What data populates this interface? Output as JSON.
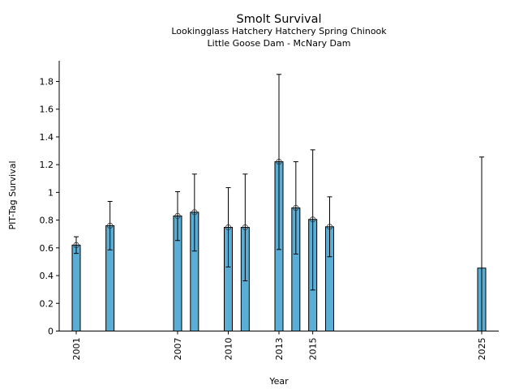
{
  "chart_data": {
    "type": "bar",
    "title": "Smolt Survival",
    "subtitle_lines": [
      "Lookingglass Hatchery Hatchery Spring Chinook",
      "Little Goose Dam - McNary Dam"
    ],
    "xlabel": "Year",
    "ylabel": "PIT-Tag Survival",
    "ylim": [
      0,
      1.95
    ],
    "xlim": [
      2000.1,
      2026.0
    ],
    "yticks": [
      0,
      0.2,
      0.4,
      0.6,
      0.8,
      1,
      1.2,
      1.4,
      1.6,
      1.8
    ],
    "ytick_labels": [
      "0",
      "0.2",
      "0.4",
      "0.6",
      "0.8",
      "1",
      "1.2",
      "1.4",
      "1.6",
      "1.8"
    ],
    "xticks": [
      2001,
      2007,
      2010,
      2013,
      2015,
      2025
    ],
    "xtick_labels": [
      "2001",
      "2007",
      "2010",
      "2013",
      "2015",
      "2025"
    ],
    "grid": false,
    "bar_color": "#5aaed6",
    "points": [
      {
        "year": 2001,
        "value": 0.62,
        "err_low": 0.56,
        "err_high": 0.68,
        "marker": true
      },
      {
        "year": 2003,
        "value": 0.76,
        "err_low": 0.585,
        "err_high": 0.935,
        "marker": true
      },
      {
        "year": 2007,
        "value": 0.83,
        "err_low": 0.653,
        "err_high": 1.005,
        "marker": true
      },
      {
        "year": 2008,
        "value": 0.857,
        "err_low": 0.577,
        "err_high": 1.132,
        "marker": true
      },
      {
        "year": 2010,
        "value": 0.748,
        "err_low": 0.462,
        "err_high": 1.034,
        "marker": true
      },
      {
        "year": 2011,
        "value": 0.748,
        "err_low": 0.362,
        "err_high": 1.132,
        "marker": true
      },
      {
        "year": 2013,
        "value": 1.221,
        "err_low": 0.588,
        "err_high": 1.851,
        "marker": true
      },
      {
        "year": 2014,
        "value": 0.888,
        "err_low": 0.555,
        "err_high": 1.221,
        "marker": true
      },
      {
        "year": 2015,
        "value": 0.805,
        "err_low": 0.296,
        "err_high": 1.307,
        "marker": true
      },
      {
        "year": 2016,
        "value": 0.752,
        "err_low": 0.536,
        "err_high": 0.968,
        "marker": true
      },
      {
        "year": 2025,
        "value": 0.454,
        "err_low": 0.0,
        "err_high": 1.255,
        "marker": false
      }
    ]
  }
}
